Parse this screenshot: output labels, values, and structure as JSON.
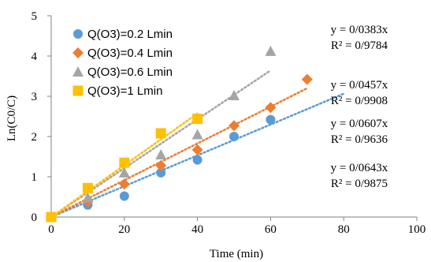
{
  "chart_data": {
    "type": "scatter",
    "xlabel": "Time (min)",
    "ylabel": "Ln(C0/C)",
    "xlim": [
      0,
      100
    ],
    "ylim": [
      0,
      5
    ],
    "x_ticks": [
      "0",
      "20",
      "40",
      "60",
      "80",
      "100"
    ],
    "y_ticks": [
      "0",
      "1",
      "2",
      "3",
      "4",
      "5"
    ],
    "grid": false,
    "legend_position": "top-left",
    "series": [
      {
        "name": "Q(O3)=0.2 Lmin",
        "marker": "circle",
        "color": "#5b9bd5",
        "x": [
          0,
          10,
          20,
          30,
          40,
          50,
          60
        ],
        "y": [
          0,
          0.3,
          0.52,
          1.1,
          1.42,
          2.0,
          2.42
        ],
        "trendline": {
          "slope": 0.0383,
          "x_end": 80,
          "equation": "y = 0/0383x",
          "r2": "R² = 0/9784"
        }
      },
      {
        "name": "Q(O3)=0.4 Lmin",
        "marker": "diamond",
        "color": "#ed7d31",
        "x": [
          0,
          10,
          20,
          30,
          40,
          50,
          60,
          70
        ],
        "y": [
          0,
          0.38,
          0.82,
          1.28,
          1.67,
          2.27,
          2.72,
          3.42
        ],
        "trendline": {
          "slope": 0.0457,
          "x_end": 70,
          "equation": "y = 0/0457x",
          "r2": "R² = 0/9908"
        }
      },
      {
        "name": "Q(O3)=0.6 Lmin",
        "marker": "triangle",
        "color": "#a5a5a5",
        "x": [
          0,
          10,
          20,
          30,
          40,
          50,
          60
        ],
        "y": [
          0,
          0.48,
          1.1,
          1.55,
          2.05,
          3.02,
          4.12
        ],
        "trendline": {
          "slope": 0.0607,
          "x_end": 60,
          "equation": "y = 0/0607x",
          "r2": "R² = 0/9636"
        }
      },
      {
        "name": "Q(O3)=1 Lmin",
        "marker": "square",
        "color": "#ffc000",
        "x": [
          0,
          10,
          20,
          30,
          40
        ],
        "y": [
          0,
          0.72,
          1.35,
          2.08,
          2.44
        ],
        "trendline": {
          "slope": 0.0643,
          "x_end": 40,
          "equation": "y = 0/0643x",
          "r2": "R² = 0/9875"
        }
      }
    ]
  }
}
